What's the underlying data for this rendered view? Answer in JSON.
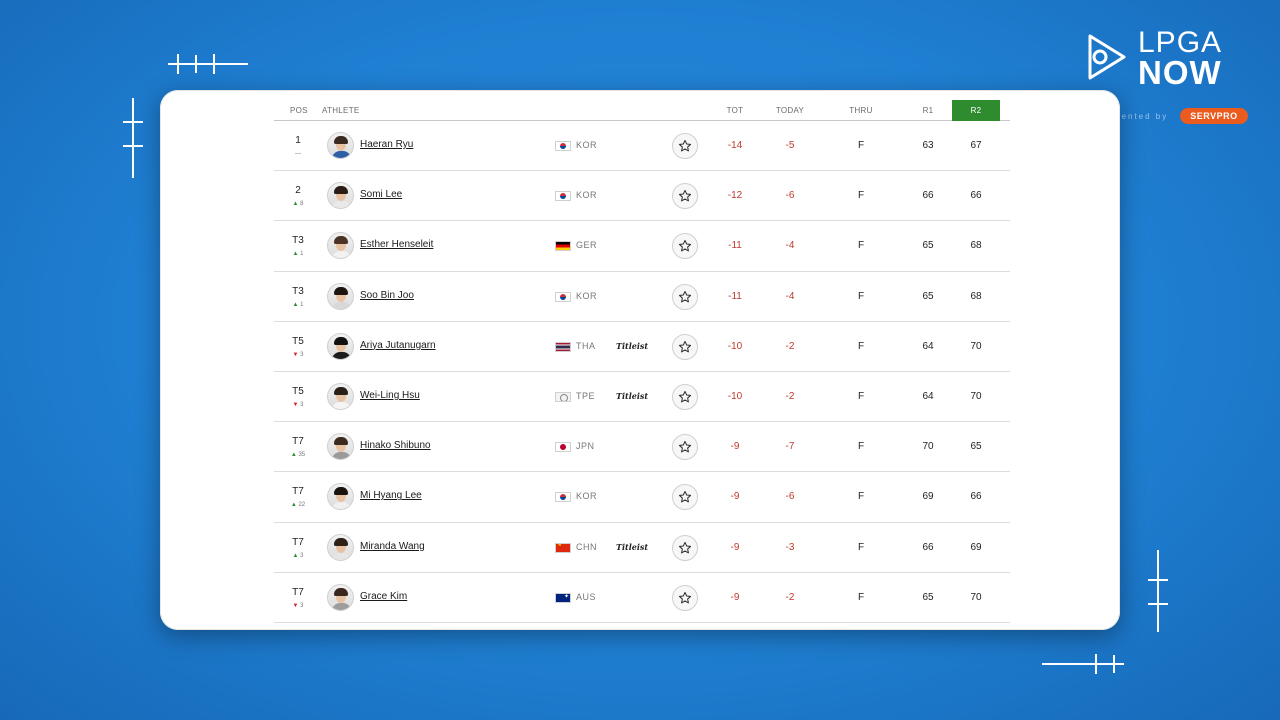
{
  "brand": {
    "line1": "LPGA",
    "line2": "NOW",
    "presented_by": "presented by",
    "sponsor": "SERVPRO"
  },
  "colors": {
    "background": "#1f7fd2",
    "round_header": "#2e8b2e",
    "under_par": "#c0392b",
    "move_up": "#2e8b2e",
    "move_down": "#cc2222"
  },
  "table": {
    "headers": {
      "pos": "POS",
      "athlete": "ATHLETE",
      "tot": "TOT",
      "today": "TODAY",
      "thru": "THRU",
      "r1": "R1",
      "r2": "R2"
    },
    "rows": [
      {
        "pos": "1",
        "move": "—",
        "dir": "none",
        "name": "Haeran Ryu",
        "flag": "kor",
        "country": "KOR",
        "sponsor": "",
        "tot": "-14",
        "today": "-5",
        "thru": "F",
        "r1": "63",
        "r2": "67"
      },
      {
        "pos": "2",
        "move": "8",
        "dir": "up",
        "name": "Somi Lee",
        "flag": "kor",
        "country": "KOR",
        "sponsor": "",
        "tot": "-12",
        "today": "-6",
        "thru": "F",
        "r1": "66",
        "r2": "66"
      },
      {
        "pos": "T3",
        "move": "1",
        "dir": "up",
        "name": "Esther Henseleit",
        "flag": "ger",
        "country": "GER",
        "sponsor": "",
        "tot": "-11",
        "today": "-4",
        "thru": "F",
        "r1": "65",
        "r2": "68"
      },
      {
        "pos": "T3",
        "move": "1",
        "dir": "up",
        "name": "Soo Bin Joo",
        "flag": "kor",
        "country": "KOR",
        "sponsor": "",
        "tot": "-11",
        "today": "-4",
        "thru": "F",
        "r1": "65",
        "r2": "68"
      },
      {
        "pos": "T5",
        "move": "3",
        "dir": "down",
        "name": "Ariya Jutanugarn",
        "flag": "tha",
        "country": "THA",
        "sponsor": "Titleist",
        "tot": "-10",
        "today": "-2",
        "thru": "F",
        "r1": "64",
        "r2": "70"
      },
      {
        "pos": "T5",
        "move": "3",
        "dir": "down",
        "name": "Wei-Ling Hsu",
        "flag": "tpe",
        "country": "TPE",
        "sponsor": "Titleist",
        "tot": "-10",
        "today": "-2",
        "thru": "F",
        "r1": "64",
        "r2": "70"
      },
      {
        "pos": "T7",
        "move": "35",
        "dir": "up",
        "name": "Hinako Shibuno",
        "flag": "jpn",
        "country": "JPN",
        "sponsor": "",
        "tot": "-9",
        "today": "-7",
        "thru": "F",
        "r1": "70",
        "r2": "65"
      },
      {
        "pos": "T7",
        "move": "22",
        "dir": "up",
        "name": "Mi Hyang Lee",
        "flag": "kor",
        "country": "KOR",
        "sponsor": "",
        "tot": "-9",
        "today": "-6",
        "thru": "F",
        "r1": "69",
        "r2": "66"
      },
      {
        "pos": "T7",
        "move": "3",
        "dir": "up",
        "name": "Miranda Wang",
        "flag": "chn",
        "country": "CHN",
        "sponsor": "Titleist",
        "tot": "-9",
        "today": "-3",
        "thru": "F",
        "r1": "66",
        "r2": "69"
      },
      {
        "pos": "T7",
        "move": "3",
        "dir": "down",
        "name": "Grace Kim",
        "flag": "aus",
        "country": "AUS",
        "sponsor": "",
        "tot": "-9",
        "today": "-2",
        "thru": "F",
        "r1": "65",
        "r2": "70"
      }
    ]
  }
}
